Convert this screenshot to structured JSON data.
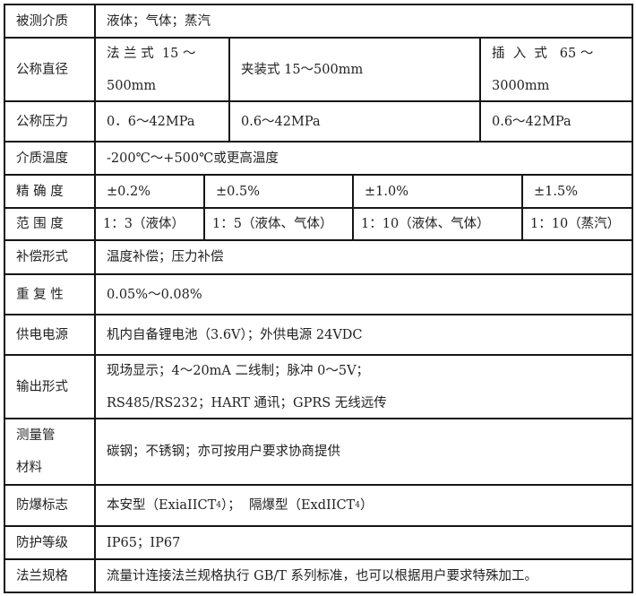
{
  "rows": {
    "medium": {
      "label": "被测介质",
      "value": "液体；气体；蒸汽"
    },
    "diameter": {
      "label": "公称直径",
      "flange_1": "法 兰 式  15 ～",
      "flange_2": "500mm",
      "clamp": "夹装式 15～500mm",
      "insert_1": "插  入  式   65 ～",
      "insert_2": "3000mm"
    },
    "pressure": {
      "label": "公称压力",
      "values": [
        "0．6～42MPa",
        "0.6～42MPa",
        "0.6～42MPa"
      ]
    },
    "temperature": {
      "label": "介质温度",
      "value": "-200℃～+500℃或更高温度"
    },
    "accuracy": {
      "label": "精 确 度",
      "values": [
        "±0.2%",
        "±0.5%",
        "±1.0%",
        "±1.5%"
      ]
    },
    "range": {
      "label": "范 围 度",
      "values": [
        "1：3（液体）",
        "1：5（液体、气体）",
        "1：10（液体、气体）",
        "1：10（蒸汽）"
      ]
    },
    "compensation": {
      "label": "补偿形式",
      "value": "温度补偿；压力补偿"
    },
    "repeatability": {
      "label": "重 复 性",
      "value": "0.05%～0.08%"
    },
    "power": {
      "label": "供电电源",
      "value": "机内自备锂电池（3.6V）；外供电源 24VDC"
    },
    "output": {
      "label": "输出形式",
      "line1": "现场显示；4～20mA 二线制；脉冲 0～5V；",
      "line2": "RS485/RS232；HART 通讯；GPRS 无线远传"
    },
    "material": {
      "label_1": "测量管",
      "label_2": "材料",
      "value": "碳钢；不锈钢；亦可按用户要求协商提供"
    },
    "explosion": {
      "label": "防爆标志",
      "part1": "本安型（ExiaIICT",
      "sub1": "4",
      "part2": "）；  隔爆型（ExdIICT",
      "sub2": "4",
      "part3": "）"
    },
    "protection": {
      "label": "防护等级",
      "value": "IP65；IP67"
    },
    "flange": {
      "label": "法兰规格",
      "value": "流量计连接法兰规格执行 GB/T 系列标准，也可以根据用户要求特殊加工。"
    }
  }
}
